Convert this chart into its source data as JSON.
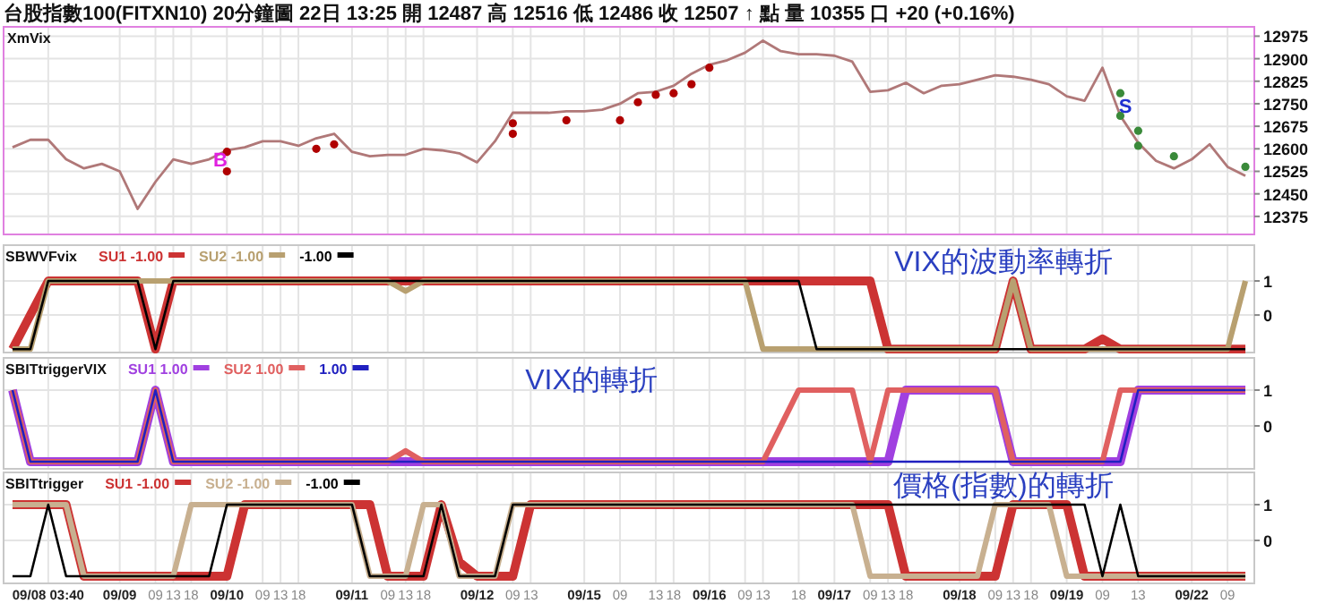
{
  "chart_data": [
    {
      "type": "line",
      "title": "台股指數100(FITXN10) 20分鐘圖 22日 13:25 開 12487 高 12516 低 12486 收 12507 ↑ 點 量 10355 口 +20 (+0.16%)",
      "subtitle": "XmVix",
      "ylim": [
        12315,
        13006
      ],
      "yticks": [
        12375,
        12450,
        12525,
        12600,
        12675,
        12750,
        12825,
        12900,
        12975
      ],
      "grid": true,
      "tick_labels": "y",
      "annotations": [
        "B",
        "S"
      ],
      "categories": [
        null,
        null,
        null,
        null,
        null,
        null,
        null,
        null,
        null,
        null,
        null,
        null,
        null,
        null,
        null,
        null,
        null,
        null,
        null,
        null,
        null,
        null,
        null,
        null,
        null,
        null,
        null,
        null,
        null,
        null,
        null,
        null,
        null,
        null,
        null,
        null,
        null,
        null,
        null,
        null,
        null,
        null,
        null,
        null,
        null,
        null,
        null,
        null,
        null,
        null,
        null,
        null,
        null,
        null,
        null,
        null,
        null,
        null,
        null,
        null,
        null,
        null,
        null,
        null,
        null,
        null,
        null,
        null,
        null,
        null
      ],
      "series": [
        {
          "type": "line",
          "color": "#b07878",
          "values": [
            12605,
            12630,
            12630,
            12565,
            12535,
            12550,
            12525,
            12400,
            12490,
            12565,
            12550,
            12565,
            12595,
            12605,
            12625,
            12625,
            12610,
            12635,
            12650,
            12590,
            12575,
            12580,
            12580,
            12600,
            12595,
            12585,
            12555,
            12625,
            12720,
            12720,
            12720,
            12725,
            12725,
            12730,
            12750,
            12785,
            12790,
            12810,
            12850,
            12880,
            12895,
            12920,
            12960,
            12925,
            12915,
            12915,
            12910,
            12890,
            12790,
            12795,
            12820,
            12785,
            12810,
            12815,
            12830,
            12845,
            12840,
            12830,
            12815,
            12775,
            12760,
            12870,
            12710,
            12620,
            12560,
            12535,
            12565,
            12615,
            12540,
            12510
          ]
        },
        {
          "type": "scatter",
          "marker": "circle",
          "color": "#b00000",
          "values": [
            null,
            null,
            null,
            null,
            null,
            null,
            null,
            null,
            null,
            null,
            null,
            null,
            12525,
            null,
            null,
            null,
            null,
            12600,
            12615,
            null,
            null,
            null,
            null,
            null,
            null,
            null,
            null,
            null,
            12650,
            null,
            null,
            12695,
            null,
            null,
            12695,
            12755,
            12780,
            12785,
            12815,
            12870,
            null,
            null,
            null,
            null,
            null,
            null,
            null,
            null,
            null,
            null,
            null,
            null,
            null,
            null,
            null,
            null,
            null,
            null,
            null,
            null,
            null,
            null,
            null,
            null,
            null,
            null,
            null,
            null,
            null,
            null
          ]
        },
        {
          "type": "scatter",
          "marker": "circle",
          "color": "#b00000",
          "values": [
            null,
            null,
            null,
            null,
            null,
            null,
            null,
            null,
            null,
            null,
            null,
            null,
            12590,
            null,
            null,
            null,
            null,
            null,
            null,
            null,
            null,
            null,
            null,
            null,
            null,
            null,
            null,
            null,
            12685,
            null,
            null,
            null,
            null,
            null,
            null,
            null,
            null,
            null,
            null,
            null,
            null,
            null,
            null,
            null,
            null,
            null,
            null,
            null,
            null,
            null,
            null,
            null,
            null,
            null,
            null,
            null,
            null,
            null,
            null,
            null,
            null,
            null,
            null,
            null,
            null,
            null,
            null,
            null,
            null,
            null
          ]
        },
        {
          "type": "scatter",
          "marker": "circle",
          "color": "#3a8a3a",
          "values": [
            null,
            null,
            null,
            null,
            null,
            null,
            null,
            null,
            null,
            null,
            null,
            null,
            null,
            null,
            null,
            null,
            null,
            null,
            null,
            null,
            null,
            null,
            null,
            null,
            null,
            null,
            null,
            null,
            null,
            null,
            null,
            null,
            null,
            null,
            null,
            null,
            null,
            null,
            null,
            null,
            null,
            null,
            null,
            null,
            null,
            null,
            null,
            null,
            null,
            null,
            null,
            null,
            null,
            null,
            null,
            null,
            null,
            null,
            null,
            null,
            null,
            null,
            12785,
            12660,
            null,
            12575,
            null,
            null,
            null,
            12540
          ]
        },
        {
          "type": "scatter",
          "marker": "circle",
          "color": "#3a8a3a",
          "values": [
            null,
            null,
            null,
            null,
            null,
            null,
            null,
            null,
            null,
            null,
            null,
            null,
            null,
            null,
            null,
            null,
            null,
            null,
            null,
            null,
            null,
            null,
            null,
            null,
            null,
            null,
            null,
            null,
            null,
            null,
            null,
            null,
            null,
            null,
            null,
            null,
            null,
            null,
            null,
            null,
            null,
            null,
            null,
            null,
            null,
            null,
            null,
            null,
            null,
            null,
            null,
            null,
            null,
            null,
            null,
            null,
            null,
            null,
            null,
            null,
            null,
            null,
            12710,
            12610,
            null,
            null,
            null,
            null,
            null,
            null
          ]
        }
      ]
    },
    {
      "type": "line",
      "title": "SBWVFvix",
      "ylim": [
        -1.1,
        2.05
      ],
      "yticks": [
        0,
        1
      ],
      "grid": true,
      "tick_labels": "y",
      "legend": "top left",
      "annotations": [
        "VIX的波動率轉折"
      ],
      "categories": [
        null,
        null,
        null,
        null,
        null,
        null,
        null,
        null,
        null,
        null,
        null,
        null,
        null,
        null,
        null,
        null,
        null,
        null,
        null,
        null,
        null,
        null,
        null,
        null,
        null,
        null,
        null,
        null,
        null,
        null,
        null,
        null,
        null,
        null,
        null,
        null,
        null,
        null,
        null,
        null,
        null,
        null,
        null,
        null,
        null,
        null,
        null,
        null,
        null,
        null,
        null,
        null,
        null,
        null,
        null,
        null,
        null,
        null,
        null,
        null,
        null,
        null,
        null,
        null,
        null,
        null,
        null,
        null,
        null,
        null
      ],
      "series": [
        {
          "name": "SU1 -1.00",
          "color": "#cc3333",
          "values": [
            -1,
            0,
            1,
            1,
            1,
            1,
            1,
            1,
            -1,
            1,
            1,
            1,
            1,
            1,
            1,
            1,
            1,
            1,
            1,
            1,
            1,
            1,
            1,
            1,
            1,
            1,
            1,
            1,
            1,
            1,
            1,
            1,
            1,
            1,
            1,
            1,
            1,
            1,
            1,
            1,
            1,
            1,
            1,
            1,
            1,
            1,
            1,
            1,
            1,
            -1,
            -1,
            -1,
            -1,
            -1,
            -1,
            -1,
            1,
            -1,
            -1,
            -1,
            -1,
            -0.7,
            -1,
            -1,
            -1,
            -1,
            -1,
            -1,
            -1,
            -1
          ]
        },
        {
          "name": "SU2 -1.00",
          "color": "#b8a070",
          "values": [
            -1,
            -1,
            1,
            1,
            1,
            1,
            1,
            1,
            1,
            1,
            1,
            1,
            1,
            1,
            1,
            1,
            1,
            1,
            1,
            1,
            1,
            1,
            0.7,
            1,
            1,
            1,
            1,
            1,
            1,
            1,
            1,
            1,
            1,
            1,
            1,
            1,
            1,
            1,
            1,
            1,
            1,
            1,
            -1,
            -1,
            -1,
            -1,
            -1,
            -1,
            -1,
            -1,
            -1,
            -1,
            -1,
            -1,
            -1,
            -1,
            1,
            -1,
            -1,
            -1,
            -1,
            -1,
            -1,
            -1,
            -1,
            -1,
            -1,
            -1,
            -1,
            1
          ]
        },
        {
          "name": "-1.00",
          "color": "#000000",
          "values": [
            -1,
            -1,
            1,
            1,
            1,
            1,
            1,
            1,
            -1,
            1,
            1,
            1,
            1,
            1,
            1,
            1,
            1,
            1,
            1,
            1,
            1,
            1,
            1,
            1,
            1,
            1,
            1,
            1,
            1,
            1,
            1,
            1,
            1,
            1,
            1,
            1,
            1,
            1,
            1,
            1,
            1,
            1,
            1,
            1,
            1,
            -1,
            -1,
            -1,
            -1,
            -1,
            -1,
            -1,
            -1,
            -1,
            -1,
            -1,
            -1,
            -1,
            -1,
            -1,
            -1,
            -1,
            -1,
            -1,
            -1,
            -1,
            -1,
            -1,
            -1,
            -1
          ]
        }
      ]
    },
    {
      "type": "line",
      "title": "SBITtriggerVIX",
      "ylim": [
        -1.2,
        1.9
      ],
      "yticks": [
        0,
        1
      ],
      "grid": true,
      "tick_labels": "y",
      "legend": "top left",
      "annotations": [
        "VIX的轉折"
      ],
      "categories": [
        null,
        null,
        null,
        null,
        null,
        null,
        null,
        null,
        null,
        null,
        null,
        null,
        null,
        null,
        null,
        null,
        null,
        null,
        null,
        null,
        null,
        null,
        null,
        null,
        null,
        null,
        null,
        null,
        null,
        null,
        null,
        null,
        null,
        null,
        null,
        null,
        null,
        null,
        null,
        null,
        null,
        null,
        null,
        null,
        null,
        null,
        null,
        null,
        null,
        null,
        null,
        null,
        null,
        null,
        null,
        null,
        null,
        null,
        null,
        null,
        null,
        null,
        null,
        null,
        null,
        null,
        null,
        null,
        null,
        null
      ],
      "series": [
        {
          "name": "SU1 1.00",
          "color": "#a040e0",
          "values": [
            1,
            -1,
            -1,
            -1,
            -1,
            -1,
            -1,
            -1,
            1,
            -1,
            -1,
            -1,
            -1,
            -1,
            -1,
            -1,
            -1,
            -1,
            -1,
            -1,
            -1,
            -1,
            -1,
            -1,
            -1,
            -1,
            -1,
            -1,
            -1,
            -1,
            -1,
            -1,
            -1,
            -1,
            -1,
            -1,
            -1,
            -1,
            -1,
            -1,
            -1,
            -1,
            -1,
            -1,
            -1,
            -1,
            -1,
            -1,
            -1,
            -1,
            1,
            1,
            1,
            1,
            1,
            1,
            -1,
            -1,
            -1,
            -1,
            -1,
            -1,
            -1,
            1,
            1,
            1,
            1,
            1,
            1,
            1
          ]
        },
        {
          "name": "SU2 1.00",
          "color": "#e06060",
          "values": [
            1,
            -1,
            -1,
            -1,
            -1,
            -1,
            -1,
            -1,
            1,
            -1,
            -1,
            -1,
            -1,
            -1,
            -1,
            -1,
            -1,
            -1,
            -1,
            -1,
            -1,
            -1,
            -0.7,
            -1,
            -1,
            -1,
            -1,
            -1,
            -1,
            -1,
            -1,
            -1,
            -1,
            -1,
            -1,
            -1,
            -1,
            -1,
            -1,
            -1,
            -1,
            -1,
            -1,
            0,
            1,
            1,
            1,
            1,
            -1,
            1,
            1,
            1,
            1,
            1,
            1,
            1,
            -1,
            -1,
            -1,
            -1,
            -1,
            -1,
            1,
            1,
            1,
            1,
            1,
            1,
            1,
            1
          ]
        },
        {
          "name": "1.00",
          "color": "#2020c0",
          "values": [
            1,
            -1,
            -1,
            -1,
            -1,
            -1,
            -1,
            -1,
            1,
            -1,
            -1,
            -1,
            -1,
            -1,
            -1,
            -1,
            -1,
            -1,
            -1,
            -1,
            -1,
            -1,
            -1,
            -1,
            -1,
            -1,
            -1,
            -1,
            -1,
            -1,
            -1,
            -1,
            -1,
            -1,
            -1,
            -1,
            -1,
            -1,
            -1,
            -1,
            -1,
            -1,
            -1,
            -1,
            -1,
            -1,
            -1,
            -1,
            -1,
            -1,
            -1,
            -1,
            -1,
            -1,
            -1,
            -1,
            -1,
            -1,
            -1,
            -1,
            -1,
            -1,
            -1,
            1,
            1,
            1,
            1,
            1,
            1,
            1
          ]
        }
      ]
    },
    {
      "type": "line",
      "title": "SBITtrigger",
      "ylim": [
        -1.2,
        1.9
      ],
      "yticks": [
        0,
        1
      ],
      "grid": true,
      "legend": "top left",
      "annotations": [
        "價格(指數)的轉折"
      ],
      "categories": [
        null,
        null,
        "09/08 03:40",
        null,
        null,
        null,
        "09/09",
        null,
        "09",
        "13",
        "18",
        null,
        "09/10",
        null,
        "09",
        "13",
        "18",
        null,
        null,
        "09/11",
        null,
        "09",
        "13",
        "18",
        null,
        null,
        "09/12",
        null,
        "09",
        "13",
        null,
        null,
        "09/15",
        null,
        "09",
        null,
        "13",
        "18",
        null,
        "09/16",
        null,
        "09",
        "13",
        null,
        "18",
        null,
        "09/17",
        null,
        "09",
        "13",
        "18",
        null,
        null,
        "09/18",
        null,
        "09",
        "13",
        "18",
        null,
        "09/19",
        null,
        "09",
        null,
        "13",
        null,
        null,
        "09/22",
        null,
        "09",
        null
      ],
      "series": [
        {
          "name": "SU1 -1.00",
          "color": "#cc3333",
          "values": [
            1,
            1,
            1,
            1,
            -1,
            -1,
            -1,
            -1,
            -1,
            -1,
            -1,
            -1,
            -1,
            1,
            1,
            1,
            1,
            1,
            1,
            1,
            1,
            -1,
            -1,
            -1,
            1,
            -0.6,
            -1,
            -1,
            -1,
            1,
            1,
            1,
            1,
            1,
            1,
            1,
            1,
            1,
            1,
            1,
            1,
            1,
            1,
            1,
            1,
            1,
            1,
            1,
            1,
            1,
            -1,
            -1,
            -1,
            -1,
            -1,
            -1,
            1,
            1,
            1,
            1,
            -1,
            -1,
            -1,
            -1,
            -1,
            -1,
            -1,
            -1,
            -1,
            -1
          ]
        },
        {
          "name": "SU2 -1.00",
          "color": "#c8b090",
          "values": [
            1,
            1,
            1,
            1,
            -1,
            -1,
            -1,
            -1,
            -1,
            -1,
            1,
            1,
            1,
            1,
            1,
            1,
            1,
            1,
            1,
            1,
            -1,
            -1,
            -1,
            1,
            1,
            -1,
            -1,
            -1,
            1,
            1,
            1,
            1,
            1,
            1,
            1,
            1,
            1,
            1,
            1,
            1,
            1,
            1,
            1,
            1,
            1,
            1,
            1,
            1,
            -1,
            -1,
            -1,
            -1,
            -1,
            -1,
            -1,
            1,
            1,
            1,
            1,
            -1,
            -1,
            -1,
            -1,
            -1,
            -1,
            -1,
            -1,
            -1,
            -1,
            -1
          ]
        },
        {
          "name": "-1.00",
          "color": "#000000",
          "values": [
            -1,
            -1,
            1,
            -1,
            -1,
            -1,
            -1,
            -1,
            -1,
            -1,
            -1,
            -1,
            1,
            1,
            1,
            1,
            1,
            1,
            1,
            1,
            -1,
            -1,
            -1,
            -1,
            1,
            -1,
            -1,
            -1,
            1,
            1,
            1,
            1,
            1,
            1,
            1,
            1,
            1,
            1,
            1,
            1,
            1,
            1,
            1,
            1,
            1,
            1,
            1,
            1,
            1,
            1,
            1,
            1,
            1,
            1,
            1,
            1,
            1,
            1,
            1,
            1,
            1,
            -1,
            1,
            -1,
            -1,
            -1,
            -1,
            -1,
            -1,
            -1
          ]
        }
      ]
    }
  ]
}
